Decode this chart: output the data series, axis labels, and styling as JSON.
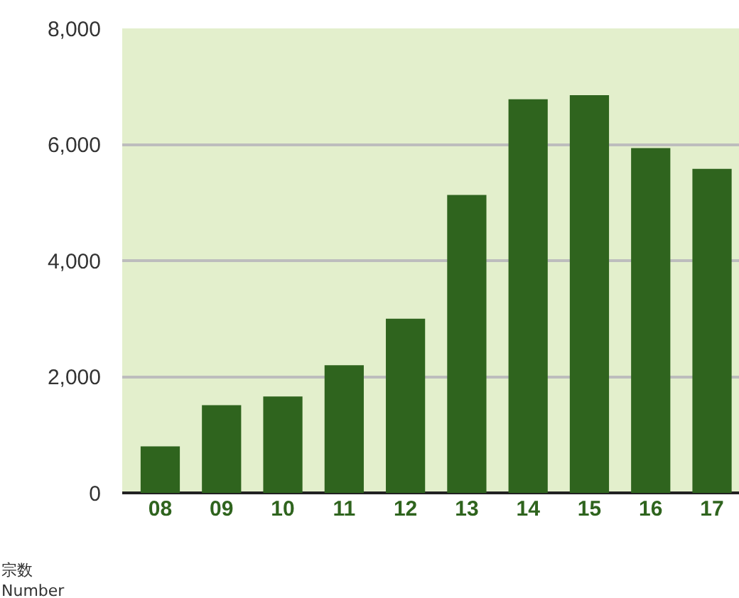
{
  "chart_data": {
    "type": "bar",
    "categories": [
      "08",
      "09",
      "10",
      "11",
      "12",
      "13",
      "14",
      "15",
      "16",
      "17"
    ],
    "values": [
      800,
      1510,
      1660,
      2200,
      3000,
      5130,
      6780,
      6850,
      5940,
      5580
    ],
    "color": "#2f641e",
    "ylabel": "宗数\nNumber",
    "ylim": [
      0,
      8000
    ],
    "yticks": [
      {
        "value": 0,
        "label": "0"
      },
      {
        "value": 2000,
        "label": "2,000"
      },
      {
        "value": 4000,
        "label": "4,000"
      },
      {
        "value": 6000,
        "label": "6,000"
      },
      {
        "value": 8000,
        "label": "8,000"
      }
    ],
    "grid": "y"
  }
}
